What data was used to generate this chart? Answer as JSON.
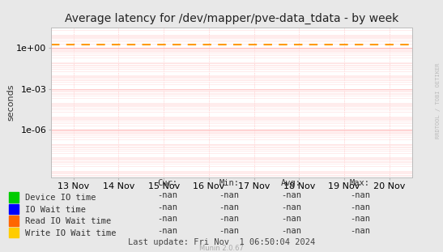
{
  "title": "Average latency for /dev/mapper/pve-data_tdata - by week",
  "ylabel": "seconds",
  "background_color": "#e8e8e8",
  "plot_bg_color": "#ffffff",
  "grid_major_color": "#ffaaaa",
  "grid_minor_color": "#ffdddd",
  "xticklabels": [
    "13 Nov",
    "14 Nov",
    "15 Nov",
    "16 Nov",
    "17 Nov",
    "18 Nov",
    "19 Nov",
    "20 Nov"
  ],
  "ylim_min": 3e-10,
  "ylim_max": 30.0,
  "dashed_line_y": 1.8,
  "dashed_line_color": "#ff9900",
  "watermark": "RRDTOOL / TOBI OETIKER",
  "munin_label": "Munin 2.0.67",
  "legend_entries": [
    {
      "label": "Device IO time",
      "color": "#00cc00"
    },
    {
      "label": "IO Wait time",
      "color": "#0000ff"
    },
    {
      "label": "Read IO Wait time",
      "color": "#ff6600"
    },
    {
      "label": "Write IO Wait time",
      "color": "#ffcc00"
    }
  ],
  "legend_col_headers": [
    "Cur:",
    "Min:",
    "Avg:",
    "Max:"
  ],
  "legend_values": [
    "-nan",
    "-nan",
    "-nan",
    "-nan"
  ],
  "last_update": "Last update: Fri Nov  1 06:50:04 2024",
  "title_fontsize": 10,
  "axis_fontsize": 8,
  "legend_fontsize": 7.5,
  "watermark_fontsize": 5,
  "munin_fontsize": 6
}
